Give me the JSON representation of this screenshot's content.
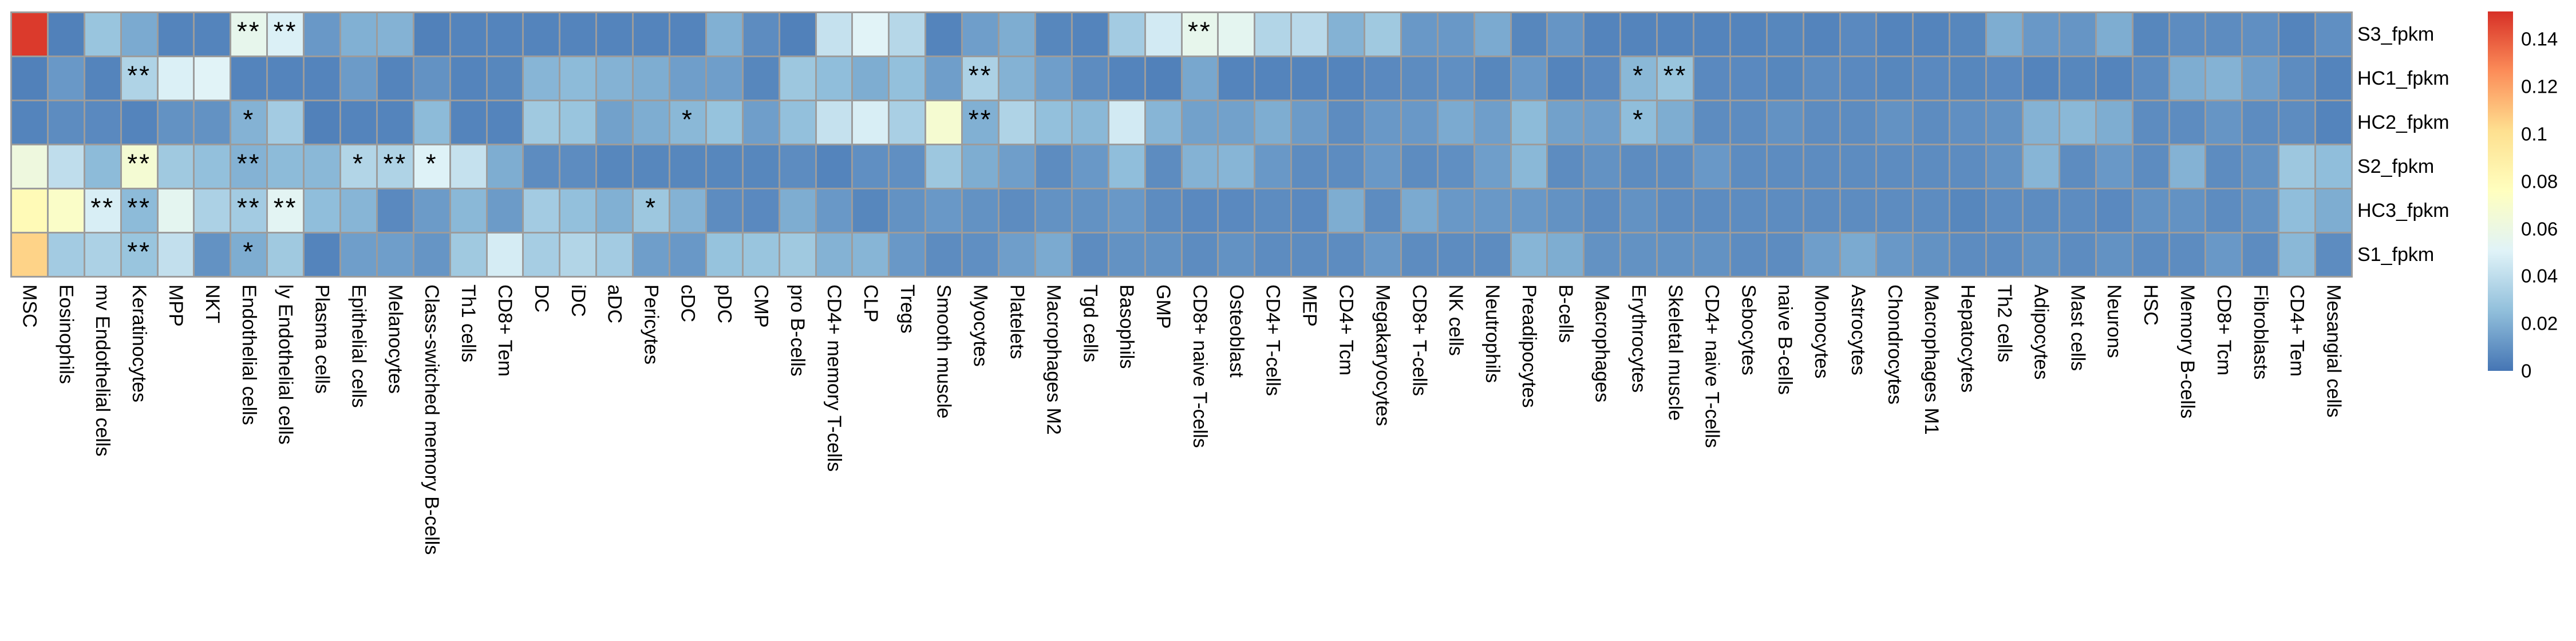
{
  "figure_type": "expression-deconvolution-heatmap",
  "styles": {
    "background": "#FFFFFF",
    "grid_line_color": "#9C9C9C",
    "text_color": "#000000"
  },
  "chart_data": {
    "type": "heatmap",
    "rows": [
      "S3_fpkm",
      "HC1_fpkm",
      "HC2_fpkm",
      "S2_fpkm",
      "HC3_fpkm",
      "S1_fpkm"
    ],
    "columns": [
      "MSC",
      "Eosinophils",
      "mv Endothelial cells",
      "Keratinocytes",
      "MPP",
      "NKT",
      "Endothelial cells",
      "ly Endothelial cells",
      "Plasma cells",
      "Epithelial cells",
      "Melanocytes",
      "Class-switched memory B-cells",
      "Th1 cells",
      "CD8+ Tem",
      "DC",
      "iDC",
      "aDC",
      "Pericytes",
      "cDC",
      "pDC",
      "CMP",
      "pro B-cells",
      "CD4+ memory T-cells",
      "CLP",
      "Tregs",
      "Smooth muscle",
      "Myocytes",
      "Platelets",
      "Macrophages M2",
      "Tgd cells",
      "Basophils",
      "GMP",
      "CD8+ naive T-cells",
      "Osteoblast",
      "CD4+ T-cells",
      "MEP",
      "CD4+ Tcm",
      "Megakaryocytes",
      "CD8+ T-cells",
      "NK cells",
      "Neutrophils",
      "Preadipocytes",
      "B-cells",
      "Macrophages",
      "Erythrocytes",
      "Skeletal muscle",
      "CD4+ naive T-cells",
      "Sebocytes",
      "naive B-cells",
      "Monocytes",
      "Astrocytes",
      "Chondrocytes",
      "Macrophages M1",
      "Hepatocytes",
      "Th2 cells",
      "Adipocytes",
      "Mast cells",
      "Neurons",
      "HSC",
      "Memory B-cells",
      "CD8+ Tcm",
      "Fibroblasts",
      "CD4+ Tem",
      "Mesangial cells"
    ],
    "values": [
      [
        0.149,
        0.004,
        0.028,
        0.018,
        0.005,
        0.005,
        0.056,
        0.049,
        0.012,
        0.02,
        0.021,
        0.004,
        0.005,
        0.005,
        0.005,
        0.005,
        0.005,
        0.005,
        0.005,
        0.02,
        0.008,
        0.004,
        0.042,
        0.051,
        0.037,
        0.005,
        0.014,
        0.019,
        0.006,
        0.005,
        0.031,
        0.046,
        0.056,
        0.054,
        0.036,
        0.038,
        0.021,
        0.03,
        0.012,
        0.012,
        0.018,
        0.006,
        0.011,
        0.005,
        0.005,
        0.005,
        0.005,
        0.005,
        0.006,
        0.005,
        0.007,
        0.005,
        0.005,
        0.006,
        0.019,
        0.012,
        0.011,
        0.019,
        0.006,
        0.008,
        0.008,
        0.009,
        0.005,
        0.009
      ],
      [
        0.004,
        0.012,
        0.005,
        0.035,
        0.049,
        0.051,
        0.005,
        0.005,
        0.005,
        0.013,
        0.005,
        0.01,
        0.005,
        0.006,
        0.022,
        0.024,
        0.021,
        0.019,
        0.014,
        0.014,
        0.006,
        0.029,
        0.025,
        0.019,
        0.026,
        0.014,
        0.034,
        0.021,
        0.014,
        0.008,
        0.005,
        0.004,
        0.017,
        0.005,
        0.005,
        0.005,
        0.005,
        0.007,
        0.008,
        0.009,
        0.006,
        0.012,
        0.005,
        0.007,
        0.023,
        0.028,
        0.007,
        0.007,
        0.006,
        0.008,
        0.007,
        0.006,
        0.007,
        0.006,
        0.007,
        0.005,
        0.006,
        0.005,
        0.008,
        0.019,
        0.021,
        0.014,
        0.008,
        0.005
      ],
      [
        0.005,
        0.008,
        0.007,
        0.005,
        0.01,
        0.01,
        0.021,
        0.031,
        0.004,
        0.005,
        0.005,
        0.024,
        0.005,
        0.005,
        0.03,
        0.028,
        0.015,
        0.019,
        0.023,
        0.027,
        0.014,
        0.026,
        0.042,
        0.048,
        0.033,
        0.068,
        0.02,
        0.035,
        0.026,
        0.023,
        0.046,
        0.022,
        0.015,
        0.015,
        0.019,
        0.013,
        0.008,
        0.012,
        0.012,
        0.018,
        0.014,
        0.024,
        0.015,
        0.014,
        0.025,
        0.019,
        0.008,
        0.008,
        0.01,
        0.008,
        0.008,
        0.01,
        0.008,
        0.009,
        0.01,
        0.021,
        0.023,
        0.019,
        0.008,
        0.008,
        0.011,
        0.008,
        0.008,
        0.005
      ],
      [
        0.062,
        0.04,
        0.024,
        0.067,
        0.03,
        0.026,
        0.021,
        0.024,
        0.023,
        0.036,
        0.035,
        0.05,
        0.042,
        0.019,
        0.008,
        0.008,
        0.006,
        0.006,
        0.006,
        0.006,
        0.006,
        0.008,
        0.005,
        0.009,
        0.009,
        0.029,
        0.019,
        0.014,
        0.008,
        0.012,
        0.025,
        0.008,
        0.021,
        0.022,
        0.012,
        0.008,
        0.008,
        0.012,
        0.008,
        0.009,
        0.014,
        0.023,
        0.008,
        0.01,
        0.008,
        0.008,
        0.012,
        0.008,
        0.008,
        0.008,
        0.008,
        0.008,
        0.008,
        0.008,
        0.01,
        0.022,
        0.008,
        0.012,
        0.008,
        0.021,
        0.008,
        0.01,
        0.029,
        0.025
      ],
      [
        0.08,
        0.072,
        0.048,
        0.024,
        0.054,
        0.034,
        0.031,
        0.053,
        0.025,
        0.022,
        0.007,
        0.013,
        0.023,
        0.013,
        0.031,
        0.026,
        0.02,
        0.029,
        0.021,
        0.008,
        0.007,
        0.019,
        0.012,
        0.006,
        0.01,
        0.012,
        0.01,
        0.008,
        0.01,
        0.01,
        0.012,
        0.008,
        0.007,
        0.007,
        0.008,
        0.007,
        0.019,
        0.008,
        0.018,
        0.012,
        0.012,
        0.012,
        0.01,
        0.008,
        0.01,
        0.008,
        0.008,
        0.008,
        0.008,
        0.008,
        0.008,
        0.008,
        0.008,
        0.006,
        0.008,
        0.008,
        0.008,
        0.007,
        0.01,
        0.01,
        0.008,
        0.01,
        0.025,
        0.019
      ],
      [
        0.105,
        0.031,
        0.034,
        0.028,
        0.041,
        0.01,
        0.019,
        0.03,
        0.005,
        0.014,
        0.014,
        0.011,
        0.03,
        0.047,
        0.032,
        0.036,
        0.031,
        0.014,
        0.012,
        0.027,
        0.028,
        0.03,
        0.021,
        0.022,
        0.012,
        0.008,
        0.009,
        0.014,
        0.018,
        0.008,
        0.01,
        0.01,
        0.008,
        0.01,
        0.008,
        0.008,
        0.008,
        0.012,
        0.008,
        0.008,
        0.008,
        0.022,
        0.019,
        0.01,
        0.01,
        0.01,
        0.01,
        0.008,
        0.008,
        0.014,
        0.018,
        0.012,
        0.01,
        0.008,
        0.008,
        0.01,
        0.008,
        0.01,
        0.008,
        0.008,
        0.012,
        0.008,
        0.023,
        0.008
      ]
    ],
    "annotations": [
      {
        "row": "S3_fpkm",
        "column": "Endothelial cells",
        "mark": "**"
      },
      {
        "row": "S3_fpkm",
        "column": "ly Endothelial cells",
        "mark": "**"
      },
      {
        "row": "S3_fpkm",
        "column": "CD8+ naive T-cells",
        "mark": "**"
      },
      {
        "row": "HC1_fpkm",
        "column": "Keratinocytes",
        "mark": "**"
      },
      {
        "row": "HC1_fpkm",
        "column": "Myocytes",
        "mark": "**"
      },
      {
        "row": "HC1_fpkm",
        "column": "Erythrocytes",
        "mark": "*"
      },
      {
        "row": "HC1_fpkm",
        "column": "Skeletal muscle",
        "mark": "**"
      },
      {
        "row": "HC2_fpkm",
        "column": "Endothelial cells",
        "mark": "*"
      },
      {
        "row": "HC2_fpkm",
        "column": "cDC",
        "mark": "*"
      },
      {
        "row": "HC2_fpkm",
        "column": "Myocytes",
        "mark": "**"
      },
      {
        "row": "HC2_fpkm",
        "column": "Erythrocytes",
        "mark": "*"
      },
      {
        "row": "S2_fpkm",
        "column": "Keratinocytes",
        "mark": "**"
      },
      {
        "row": "S2_fpkm",
        "column": "Endothelial cells",
        "mark": "**"
      },
      {
        "row": "S2_fpkm",
        "column": "Epithelial cells",
        "mark": "*"
      },
      {
        "row": "S2_fpkm",
        "column": "Melanocytes",
        "mark": "**"
      },
      {
        "row": "S2_fpkm",
        "column": "Class-switched memory B-cells",
        "mark": "*"
      },
      {
        "row": "HC3_fpkm",
        "column": "mv Endothelial cells",
        "mark": "**"
      },
      {
        "row": "HC3_fpkm",
        "column": "Keratinocytes",
        "mark": "**"
      },
      {
        "row": "HC3_fpkm",
        "column": "Endothelial cells",
        "mark": "**"
      },
      {
        "row": "HC3_fpkm",
        "column": "ly Endothelial cells",
        "mark": "**"
      },
      {
        "row": "HC3_fpkm",
        "column": "Pericytes",
        "mark": "*"
      },
      {
        "row": "S1_fpkm",
        "column": "Keratinocytes",
        "mark": "**"
      },
      {
        "row": "S1_fpkm",
        "column": "Endothelial cells",
        "mark": "*"
      }
    ],
    "colorbar": {
      "vmin": 0,
      "vmax": 0.1517,
      "palette_low_to_high": [
        "#4575B4",
        "#91BFDB",
        "#E0F3F8",
        "#FFFFBF",
        "#FEE090",
        "#FC8D59",
        "#D73027"
      ],
      "ticks": [
        {
          "label": "0.14",
          "value": 0.14
        },
        {
          "label": "0.12",
          "value": 0.12
        },
        {
          "label": "0.1",
          "value": 0.1
        },
        {
          "label": "0.08",
          "value": 0.08
        },
        {
          "label": "0.06",
          "value": 0.06
        },
        {
          "label": "0.04",
          "value": 0.04
        },
        {
          "label": "0.02",
          "value": 0.02
        },
        {
          "label": "0",
          "value": 0.0
        }
      ]
    },
    "legend_position": "right",
    "grid": true
  }
}
